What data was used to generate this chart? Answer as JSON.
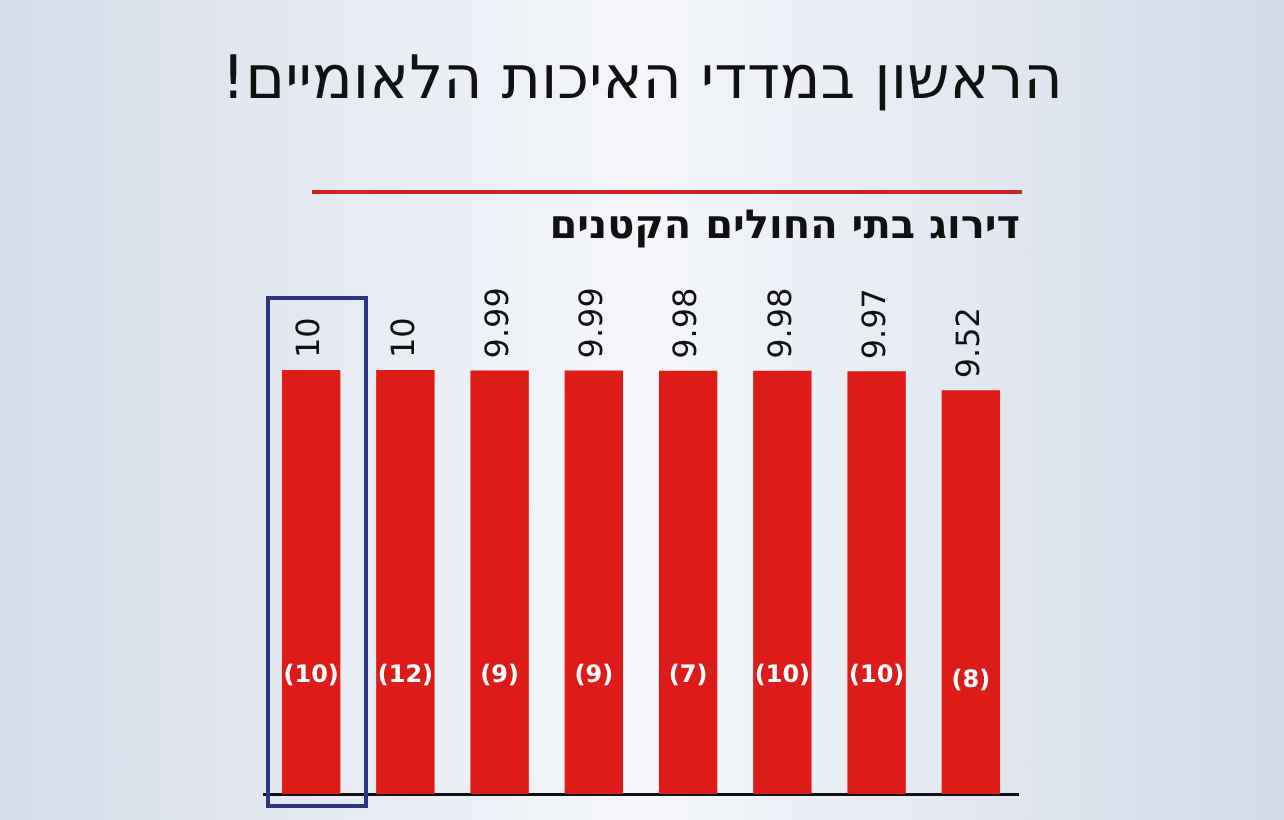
{
  "chart_data": {
    "type": "bar",
    "title": "דירוג בתי החולים הקטנים",
    "subtitle": "הראשון במדדי האיכות הלאומיים!",
    "categories": [
      null,
      null,
      null,
      null,
      null,
      null,
      null,
      null
    ],
    "values": [
      10,
      10,
      9.99,
      9.99,
      9.98,
      9.98,
      9.97,
      9.52
    ],
    "color": "#dd1c1a",
    "relative": false,
    "data_labels": true,
    "annotations": [
      "(10)",
      "(12)",
      "(9)",
      "(9)",
      "(7)",
      "(10)",
      "(10)",
      "(8)"
    ]
  }
}
